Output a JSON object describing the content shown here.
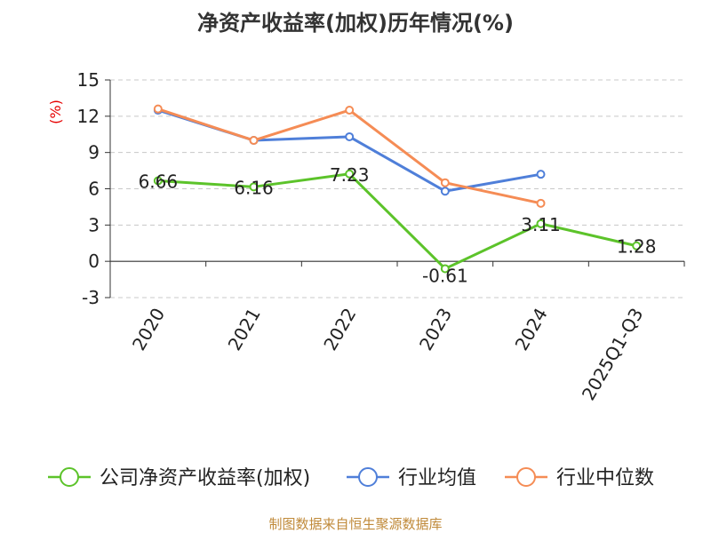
{
  "chart_data": {
    "type": "line",
    "title": "净资产收益率(加权)历年情况(%)",
    "ylabel": "(%)",
    "xlabel": "",
    "ylim": [
      -3,
      15
    ],
    "yticks": [
      -3,
      0,
      3,
      6,
      9,
      12,
      15
    ],
    "grid": true,
    "legend_position": "bottom",
    "categories": [
      "2020",
      "2021",
      "2022",
      "2023",
      "2024",
      "2025Q1-Q3"
    ],
    "series": [
      {
        "name": "公司净资产收益率(加权)",
        "color": "#5cc32a",
        "values": [
          6.66,
          6.16,
          7.23,
          -0.61,
          3.11,
          1.28
        ],
        "labels": [
          "6.66",
          "6.16",
          "7.23",
          "-0.61",
          "3.11",
          "1.28"
        ]
      },
      {
        "name": "行业均值",
        "color": "#4f7fd9",
        "values": [
          12.5,
          10.0,
          10.3,
          5.8,
          7.2,
          null
        ]
      },
      {
        "name": "行业中位数",
        "color": "#f58c55",
        "values": [
          12.6,
          10.0,
          12.5,
          6.5,
          4.8,
          null
        ]
      }
    ],
    "footer": "制图数据来自恒生聚源数据库"
  }
}
